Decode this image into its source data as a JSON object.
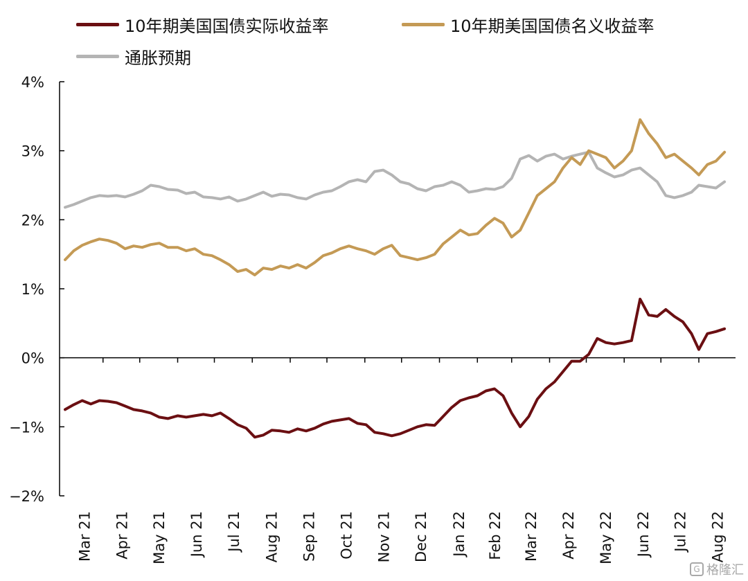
{
  "chart_data": {
    "type": "line",
    "title": "",
    "xlabel": "",
    "ylabel": "",
    "ylim": [
      -2,
      4
    ],
    "yticks": [
      "4%",
      "3%",
      "2%",
      "1%",
      "0%",
      "−1%",
      "−2%"
    ],
    "ytick_values": [
      4,
      3,
      2,
      1,
      0,
      -1,
      -2
    ],
    "x_tick_labels": [
      "Mar 21",
      "Apr 21",
      "May 21",
      "Jun 21",
      "Jul 21",
      "Aug 21",
      "Sep 21",
      "Oct 21",
      "Nov 21",
      "Dec 21",
      "Jan 22",
      "Feb 22",
      "Mar 22",
      "Apr 22",
      "May 22",
      "Jun 22",
      "Jul 22",
      "Aug 22"
    ],
    "x_months": [
      "2021-03",
      "2021-04",
      "2021-05",
      "2021-06",
      "2021-07",
      "2021-08",
      "2021-09",
      "2021-10",
      "2021-11",
      "2021-12",
      "2022-01",
      "2022-02",
      "2022-03",
      "2022-04",
      "2022-05",
      "2022-06",
      "2022-07",
      "2022-08"
    ],
    "legend_position": "top",
    "grid": false,
    "series": [
      {
        "name": "10年期美国国债实际收益率",
        "color": "#6b0f12",
        "points": [
          [
            "2021-03-01",
            -0.75
          ],
          [
            "2021-03-08",
            -0.68
          ],
          [
            "2021-03-15",
            -0.62
          ],
          [
            "2021-03-22",
            -0.67
          ],
          [
            "2021-03-29",
            -0.62
          ],
          [
            "2021-04-05",
            -0.63
          ],
          [
            "2021-04-12",
            -0.65
          ],
          [
            "2021-04-19",
            -0.7
          ],
          [
            "2021-04-26",
            -0.75
          ],
          [
            "2021-05-03",
            -0.77
          ],
          [
            "2021-05-10",
            -0.8
          ],
          [
            "2021-05-17",
            -0.86
          ],
          [
            "2021-05-24",
            -0.88
          ],
          [
            "2021-06-01",
            -0.84
          ],
          [
            "2021-06-08",
            -0.86
          ],
          [
            "2021-06-15",
            -0.84
          ],
          [
            "2021-06-22",
            -0.82
          ],
          [
            "2021-06-29",
            -0.84
          ],
          [
            "2021-07-06",
            -0.8
          ],
          [
            "2021-07-13",
            -0.88
          ],
          [
            "2021-07-20",
            -0.97
          ],
          [
            "2021-07-27",
            -1.02
          ],
          [
            "2021-08-03",
            -1.15
          ],
          [
            "2021-08-10",
            -1.12
          ],
          [
            "2021-08-17",
            -1.05
          ],
          [
            "2021-08-24",
            -1.06
          ],
          [
            "2021-08-31",
            -1.08
          ],
          [
            "2021-09-07",
            -1.03
          ],
          [
            "2021-09-14",
            -1.06
          ],
          [
            "2021-09-21",
            -1.02
          ],
          [
            "2021-09-28",
            -0.96
          ],
          [
            "2021-10-05",
            -0.92
          ],
          [
            "2021-10-12",
            -0.9
          ],
          [
            "2021-10-19",
            -0.88
          ],
          [
            "2021-10-26",
            -0.95
          ],
          [
            "2021-11-02",
            -0.97
          ],
          [
            "2021-11-09",
            -1.08
          ],
          [
            "2021-11-16",
            -1.1
          ],
          [
            "2021-11-23",
            -1.13
          ],
          [
            "2021-11-30",
            -1.1
          ],
          [
            "2021-12-07",
            -1.05
          ],
          [
            "2021-12-14",
            -1.0
          ],
          [
            "2021-12-21",
            -0.97
          ],
          [
            "2021-12-28",
            -0.98
          ],
          [
            "2022-01-04",
            -0.85
          ],
          [
            "2022-01-11",
            -0.72
          ],
          [
            "2022-01-18",
            -0.62
          ],
          [
            "2022-01-25",
            -0.58
          ],
          [
            "2022-02-01",
            -0.55
          ],
          [
            "2022-02-08",
            -0.48
          ],
          [
            "2022-02-15",
            -0.45
          ],
          [
            "2022-02-22",
            -0.55
          ],
          [
            "2022-03-01",
            -0.8
          ],
          [
            "2022-03-08",
            -1.0
          ],
          [
            "2022-03-15",
            -0.85
          ],
          [
            "2022-03-22",
            -0.6
          ],
          [
            "2022-03-29",
            -0.45
          ],
          [
            "2022-04-05",
            -0.35
          ],
          [
            "2022-04-12",
            -0.2
          ],
          [
            "2022-04-19",
            -0.05
          ],
          [
            "2022-04-26",
            -0.05
          ],
          [
            "2022-05-03",
            0.05
          ],
          [
            "2022-05-10",
            0.28
          ],
          [
            "2022-05-17",
            0.22
          ],
          [
            "2022-05-24",
            0.2
          ],
          [
            "2022-05-31",
            0.22
          ],
          [
            "2022-06-07",
            0.25
          ],
          [
            "2022-06-14",
            0.85
          ],
          [
            "2022-06-21",
            0.62
          ],
          [
            "2022-06-28",
            0.6
          ],
          [
            "2022-07-05",
            0.7
          ],
          [
            "2022-07-12",
            0.6
          ],
          [
            "2022-07-19",
            0.52
          ],
          [
            "2022-07-26",
            0.35
          ],
          [
            "2022-08-01",
            0.12
          ],
          [
            "2022-08-08",
            0.35
          ],
          [
            "2022-08-15",
            0.38
          ],
          [
            "2022-08-22",
            0.42
          ]
        ]
      },
      {
        "name": "10年期美国国债名义收益率",
        "color": "#c49a55",
        "points": [
          [
            "2021-03-01",
            1.42
          ],
          [
            "2021-03-08",
            1.55
          ],
          [
            "2021-03-15",
            1.63
          ],
          [
            "2021-03-22",
            1.68
          ],
          [
            "2021-03-29",
            1.72
          ],
          [
            "2021-04-05",
            1.7
          ],
          [
            "2021-04-12",
            1.66
          ],
          [
            "2021-04-19",
            1.58
          ],
          [
            "2021-04-26",
            1.62
          ],
          [
            "2021-05-03",
            1.6
          ],
          [
            "2021-05-10",
            1.64
          ],
          [
            "2021-05-17",
            1.66
          ],
          [
            "2021-05-24",
            1.6
          ],
          [
            "2021-06-01",
            1.6
          ],
          [
            "2021-06-08",
            1.55
          ],
          [
            "2021-06-15",
            1.58
          ],
          [
            "2021-06-22",
            1.5
          ],
          [
            "2021-06-29",
            1.48
          ],
          [
            "2021-07-06",
            1.42
          ],
          [
            "2021-07-13",
            1.35
          ],
          [
            "2021-07-20",
            1.25
          ],
          [
            "2021-07-27",
            1.28
          ],
          [
            "2021-08-03",
            1.2
          ],
          [
            "2021-08-10",
            1.3
          ],
          [
            "2021-08-17",
            1.28
          ],
          [
            "2021-08-24",
            1.33
          ],
          [
            "2021-08-31",
            1.3
          ],
          [
            "2021-09-07",
            1.35
          ],
          [
            "2021-09-14",
            1.3
          ],
          [
            "2021-09-21",
            1.38
          ],
          [
            "2021-09-28",
            1.48
          ],
          [
            "2021-10-05",
            1.52
          ],
          [
            "2021-10-12",
            1.58
          ],
          [
            "2021-10-19",
            1.62
          ],
          [
            "2021-10-26",
            1.58
          ],
          [
            "2021-11-02",
            1.55
          ],
          [
            "2021-11-09",
            1.5
          ],
          [
            "2021-11-16",
            1.58
          ],
          [
            "2021-11-23",
            1.63
          ],
          [
            "2021-11-30",
            1.48
          ],
          [
            "2021-12-07",
            1.45
          ],
          [
            "2021-12-14",
            1.42
          ],
          [
            "2021-12-21",
            1.45
          ],
          [
            "2021-12-28",
            1.5
          ],
          [
            "2022-01-04",
            1.65
          ],
          [
            "2022-01-11",
            1.75
          ],
          [
            "2022-01-18",
            1.85
          ],
          [
            "2022-01-25",
            1.78
          ],
          [
            "2022-02-01",
            1.8
          ],
          [
            "2022-02-08",
            1.92
          ],
          [
            "2022-02-15",
            2.02
          ],
          [
            "2022-02-22",
            1.95
          ],
          [
            "2022-03-01",
            1.75
          ],
          [
            "2022-03-08",
            1.85
          ],
          [
            "2022-03-15",
            2.1
          ],
          [
            "2022-03-22",
            2.35
          ],
          [
            "2022-03-29",
            2.45
          ],
          [
            "2022-04-05",
            2.55
          ],
          [
            "2022-04-12",
            2.75
          ],
          [
            "2022-04-19",
            2.9
          ],
          [
            "2022-04-26",
            2.8
          ],
          [
            "2022-05-03",
            3.0
          ],
          [
            "2022-05-10",
            2.95
          ],
          [
            "2022-05-17",
            2.9
          ],
          [
            "2022-05-24",
            2.75
          ],
          [
            "2022-05-31",
            2.85
          ],
          [
            "2022-06-07",
            3.0
          ],
          [
            "2022-06-14",
            3.45
          ],
          [
            "2022-06-21",
            3.25
          ],
          [
            "2022-06-28",
            3.1
          ],
          [
            "2022-07-05",
            2.9
          ],
          [
            "2022-07-12",
            2.95
          ],
          [
            "2022-07-19",
            2.85
          ],
          [
            "2022-07-26",
            2.75
          ],
          [
            "2022-08-01",
            2.65
          ],
          [
            "2022-08-08",
            2.8
          ],
          [
            "2022-08-15",
            2.85
          ],
          [
            "2022-08-22",
            2.98
          ]
        ]
      },
      {
        "name": "通胀预期",
        "color": "#b4b4b4",
        "points": [
          [
            "2021-03-01",
            2.18
          ],
          [
            "2021-03-08",
            2.22
          ],
          [
            "2021-03-15",
            2.27
          ],
          [
            "2021-03-22",
            2.32
          ],
          [
            "2021-03-29",
            2.35
          ],
          [
            "2021-04-05",
            2.34
          ],
          [
            "2021-04-12",
            2.35
          ],
          [
            "2021-04-19",
            2.33
          ],
          [
            "2021-04-26",
            2.37
          ],
          [
            "2021-05-03",
            2.42
          ],
          [
            "2021-05-10",
            2.5
          ],
          [
            "2021-05-17",
            2.48
          ],
          [
            "2021-05-24",
            2.44
          ],
          [
            "2021-06-01",
            2.43
          ],
          [
            "2021-06-08",
            2.38
          ],
          [
            "2021-06-15",
            2.4
          ],
          [
            "2021-06-22",
            2.33
          ],
          [
            "2021-06-29",
            2.32
          ],
          [
            "2021-07-06",
            2.3
          ],
          [
            "2021-07-13",
            2.33
          ],
          [
            "2021-07-20",
            2.27
          ],
          [
            "2021-07-27",
            2.3
          ],
          [
            "2021-08-03",
            2.35
          ],
          [
            "2021-08-10",
            2.4
          ],
          [
            "2021-08-17",
            2.34
          ],
          [
            "2021-08-24",
            2.37
          ],
          [
            "2021-08-31",
            2.36
          ],
          [
            "2021-09-07",
            2.32
          ],
          [
            "2021-09-14",
            2.3
          ],
          [
            "2021-09-21",
            2.36
          ],
          [
            "2021-09-28",
            2.4
          ],
          [
            "2021-10-05",
            2.42
          ],
          [
            "2021-10-12",
            2.48
          ],
          [
            "2021-10-19",
            2.55
          ],
          [
            "2021-10-26",
            2.58
          ],
          [
            "2021-11-02",
            2.55
          ],
          [
            "2021-11-09",
            2.7
          ],
          [
            "2021-11-16",
            2.72
          ],
          [
            "2021-11-23",
            2.65
          ],
          [
            "2021-11-30",
            2.55
          ],
          [
            "2021-12-07",
            2.52
          ],
          [
            "2021-12-14",
            2.45
          ],
          [
            "2021-12-21",
            2.42
          ],
          [
            "2021-12-28",
            2.48
          ],
          [
            "2022-01-04",
            2.5
          ],
          [
            "2022-01-11",
            2.55
          ],
          [
            "2022-01-18",
            2.5
          ],
          [
            "2022-01-25",
            2.4
          ],
          [
            "2022-02-01",
            2.42
          ],
          [
            "2022-02-08",
            2.45
          ],
          [
            "2022-02-15",
            2.44
          ],
          [
            "2022-02-22",
            2.48
          ],
          [
            "2022-03-01",
            2.6
          ],
          [
            "2022-03-08",
            2.88
          ],
          [
            "2022-03-15",
            2.93
          ],
          [
            "2022-03-22",
            2.85
          ],
          [
            "2022-03-29",
            2.92
          ],
          [
            "2022-04-05",
            2.95
          ],
          [
            "2022-04-12",
            2.88
          ],
          [
            "2022-04-19",
            2.92
          ],
          [
            "2022-04-26",
            2.95
          ],
          [
            "2022-05-03",
            2.98
          ],
          [
            "2022-05-10",
            2.75
          ],
          [
            "2022-05-17",
            2.68
          ],
          [
            "2022-05-24",
            2.62
          ],
          [
            "2022-05-31",
            2.65
          ],
          [
            "2022-06-07",
            2.72
          ],
          [
            "2022-06-14",
            2.75
          ],
          [
            "2022-06-21",
            2.65
          ],
          [
            "2022-06-28",
            2.55
          ],
          [
            "2022-07-05",
            2.35
          ],
          [
            "2022-07-12",
            2.32
          ],
          [
            "2022-07-19",
            2.35
          ],
          [
            "2022-07-26",
            2.4
          ],
          [
            "2022-08-01",
            2.5
          ],
          [
            "2022-08-08",
            2.48
          ],
          [
            "2022-08-15",
            2.46
          ],
          [
            "2022-08-22",
            2.55
          ]
        ]
      }
    ]
  },
  "watermark": {
    "text": "格隆汇",
    "logo_glyph": "G"
  }
}
